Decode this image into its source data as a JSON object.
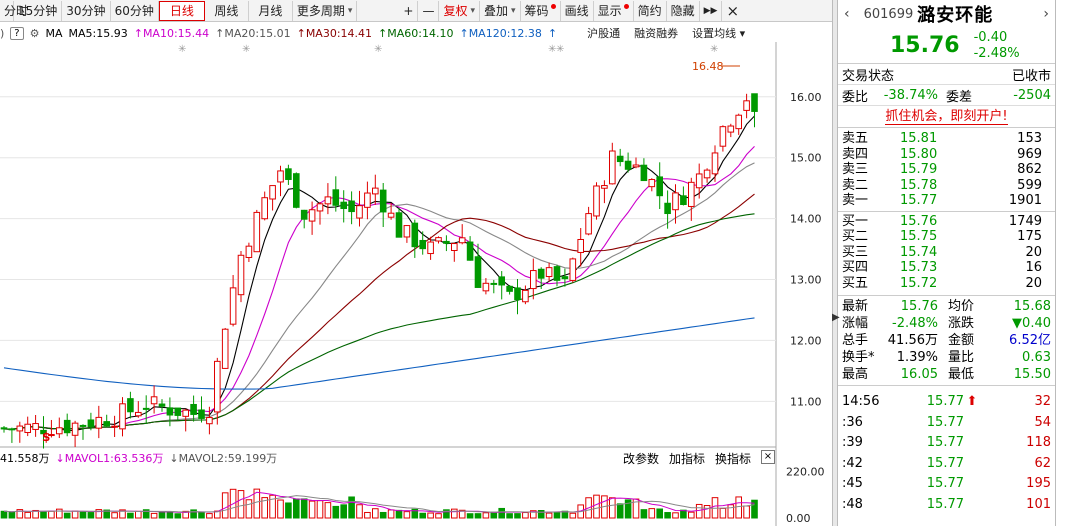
{
  "toolbar": {
    "items": [
      {
        "label": "分时",
        "name": "tab-timeshare"
      },
      {
        "label": "15分钟",
        "name": "tab-15min"
      },
      {
        "label": "30分钟",
        "name": "tab-30min"
      },
      {
        "label": "60分钟",
        "name": "tab-60min"
      },
      {
        "label": "日线",
        "name": "tab-daily"
      },
      {
        "label": "周线",
        "name": "tab-weekly"
      },
      {
        "label": "月线",
        "name": "tab-monthly"
      },
      {
        "label": "更多周期",
        "name": "tab-more-period"
      },
      {
        "label": "+",
        "name": "zoom-in-button"
      },
      {
        "label": "—",
        "name": "zoom-out-button"
      },
      {
        "label": "复权",
        "name": "adjust-button"
      },
      {
        "label": "叠加",
        "name": "overlay-button"
      },
      {
        "label": "筹码",
        "name": "chips-button"
      },
      {
        "label": "画线",
        "name": "draw-line-button"
      },
      {
        "label": "显示",
        "name": "display-button"
      },
      {
        "label": "简约",
        "name": "simple-button"
      },
      {
        "label": "隐藏",
        "name": "hide-button"
      }
    ],
    "expand_label": "▶▶",
    "close_label": "×"
  },
  "ma": {
    "prefix": "MA",
    "ma5": "MA5:15.93",
    "ma10": "MA10:15.44",
    "ma20": "MA20:15.01",
    "ma30": "MA30:14.41",
    "ma60": "MA60:14.10",
    "ma120": "MA120:12.38",
    "hgt": "沪股通",
    "margin": "融资融券",
    "settings": "设置均线",
    "help": "?"
  },
  "chart_data": {
    "type": "candlestick",
    "y_axis_labels": [
      "16.00",
      "15.00",
      "14.00",
      "13.00",
      "12.00",
      "11.00"
    ],
    "y_axis_values": [
      16.0,
      15.0,
      14.0,
      13.0,
      12.0,
      11.0
    ],
    "ylim": [
      10.25,
      16.9
    ],
    "high_marker": "16.48",
    "volume_axis_labels": [
      "220.00",
      "0.00"
    ],
    "vol_ylim": [
      0,
      240
    ]
  },
  "vol": {
    "vol": "41.558万",
    "mavol1": "MAVOL1:63.536万",
    "mavol2": "MAVOL2:59.199万",
    "btn_param": "改参数",
    "btn_indicator": "加指标",
    "btn_switch": "换指标",
    "close": "×"
  },
  "panel": {
    "code": "601699",
    "name": "潞安环能",
    "price": "15.76",
    "change": "-0.40",
    "change_pct": "-2.48%",
    "status_label": "交易状态",
    "status_value": "已收市",
    "weibi_label": "委比",
    "weibi_value": "-38.74%",
    "weicha_label": "委差",
    "weicha_value": "-2504",
    "banner": "抓住机会，即刻开户!",
    "asks": [
      {
        "label": "卖五",
        "price": "15.81",
        "vol": "153"
      },
      {
        "label": "卖四",
        "price": "15.80",
        "vol": "969"
      },
      {
        "label": "卖三",
        "price": "15.79",
        "vol": "862"
      },
      {
        "label": "卖二",
        "price": "15.78",
        "vol": "599"
      },
      {
        "label": "卖一",
        "price": "15.77",
        "vol": "1901"
      }
    ],
    "bids": [
      {
        "label": "买一",
        "price": "15.76",
        "vol": "1749"
      },
      {
        "label": "买二",
        "price": "15.75",
        "vol": "175"
      },
      {
        "label": "买三",
        "price": "15.74",
        "vol": "20"
      },
      {
        "label": "买四",
        "price": "15.73",
        "vol": "16"
      },
      {
        "label": "买五",
        "price": "15.72",
        "vol": "20"
      }
    ],
    "stats": [
      {
        "l1": "最新",
        "v1": "15.76",
        "l2": "均价",
        "v2": "15.68",
        "c1": "green",
        "c2": "green"
      },
      {
        "l1": "涨幅",
        "v1": "-2.48%",
        "l2": "涨跌",
        "v2": "▼0.40",
        "c1": "green",
        "c2": "green"
      },
      {
        "l1": "总手",
        "v1": "41.56万",
        "l2": "金额",
        "v2": "6.52亿",
        "c1": "",
        "c2": "blue"
      },
      {
        "l1": "换手*",
        "v1": "1.39%",
        "l2": "量比",
        "v2": "0.63",
        "c1": "",
        "c2": "green"
      },
      {
        "l1": "最高",
        "v1": "16.05",
        "l2": "最低",
        "v2": "15.50",
        "c1": "green",
        "c2": "green"
      }
    ],
    "ticks": [
      {
        "time": "14:56",
        "price": "15.77",
        "arrow": "⬆",
        "vol": "32"
      },
      {
        "time": ":36",
        "price": "15.77",
        "arrow": "",
        "vol": "54"
      },
      {
        "time": ":39",
        "price": "15.77",
        "arrow": "",
        "vol": "118"
      },
      {
        "time": ":42",
        "price": "15.77",
        "arrow": "",
        "vol": "62"
      },
      {
        "time": ":45",
        "price": "15.77",
        "arrow": "",
        "vol": "195"
      },
      {
        "time": ":48",
        "price": "15.77",
        "arrow": "",
        "vol": "101"
      }
    ]
  },
  "colors": {
    "up": "#e00000",
    "down": "#009900",
    "ma5": "#000000",
    "ma10": "#cc00cc",
    "ma20": "#888888",
    "ma30": "#8b0000",
    "ma60": "#006400",
    "ma120": "#1060c0"
  }
}
